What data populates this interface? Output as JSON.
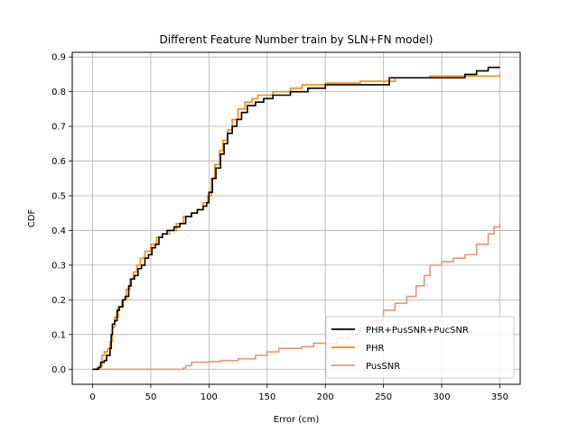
{
  "chart_data": {
    "type": "line",
    "title": "Different Feature Number train by SLN+FN model)",
    "xlabel": "Error (cm)",
    "ylabel": "CDF",
    "xlim": [
      -17.5,
      367.5
    ],
    "ylim": [
      -0.0435,
      0.9135
    ],
    "xticks": [
      0,
      50,
      100,
      150,
      200,
      250,
      300,
      350
    ],
    "yticks": [
      0.0,
      0.1,
      0.2,
      0.3,
      0.4,
      0.5,
      0.6,
      0.7,
      0.8,
      0.9
    ],
    "grid": true,
    "legend_position": "lower-right",
    "series": [
      {
        "name": "PHR+PusSNR+PucSNR",
        "color": "#000000",
        "points": [
          [
            0,
            0
          ],
          [
            3,
            0
          ],
          [
            5,
            0.005
          ],
          [
            7,
            0.02
          ],
          [
            10,
            0.025
          ],
          [
            12,
            0.04
          ],
          [
            15,
            0.06
          ],
          [
            16,
            0.1
          ],
          [
            17,
            0.13
          ],
          [
            19,
            0.14
          ],
          [
            21,
            0.17
          ],
          [
            23,
            0.18
          ],
          [
            26,
            0.2
          ],
          [
            28,
            0.21
          ],
          [
            31,
            0.24
          ],
          [
            33,
            0.26
          ],
          [
            36,
            0.27
          ],
          [
            39,
            0.29
          ],
          [
            42,
            0.3
          ],
          [
            45,
            0.32
          ],
          [
            48,
            0.33
          ],
          [
            51,
            0.35
          ],
          [
            54,
            0.36
          ],
          [
            57,
            0.38
          ],
          [
            60,
            0.39
          ],
          [
            64,
            0.4
          ],
          [
            70,
            0.41
          ],
          [
            75,
            0.42
          ],
          [
            80,
            0.44
          ],
          [
            85,
            0.45
          ],
          [
            90,
            0.46
          ],
          [
            95,
            0.47
          ],
          [
            98,
            0.48
          ],
          [
            100,
            0.51
          ],
          [
            103,
            0.55
          ],
          [
            106,
            0.58
          ],
          [
            110,
            0.62
          ],
          [
            113,
            0.65
          ],
          [
            116,
            0.68
          ],
          [
            120,
            0.7
          ],
          [
            124,
            0.72
          ],
          [
            128,
            0.74
          ],
          [
            133,
            0.76
          ],
          [
            140,
            0.77
          ],
          [
            147,
            0.78
          ],
          [
            155,
            0.79
          ],
          [
            170,
            0.8
          ],
          [
            185,
            0.81
          ],
          [
            200,
            0.82
          ],
          [
            255,
            0.84
          ],
          [
            290,
            0.84
          ],
          [
            320,
            0.85
          ],
          [
            330,
            0.86
          ],
          [
            340,
            0.87
          ],
          [
            350,
            0.87
          ]
        ]
      },
      {
        "name": "PHR",
        "color": "#ff8c00",
        "points": [
          [
            0,
            0
          ],
          [
            4,
            0.005
          ],
          [
            6,
            0.01
          ],
          [
            8,
            0.04
          ],
          [
            10,
            0.05
          ],
          [
            13,
            0.06
          ],
          [
            15,
            0.08
          ],
          [
            17,
            0.12
          ],
          [
            19,
            0.15
          ],
          [
            22,
            0.18
          ],
          [
            25,
            0.2
          ],
          [
            29,
            0.23
          ],
          [
            32,
            0.26
          ],
          [
            35,
            0.28
          ],
          [
            38,
            0.3
          ],
          [
            41,
            0.32
          ],
          [
            45,
            0.34
          ],
          [
            50,
            0.36
          ],
          [
            55,
            0.38
          ],
          [
            60,
            0.39
          ],
          [
            66,
            0.4
          ],
          [
            72,
            0.42
          ],
          [
            78,
            0.44
          ],
          [
            85,
            0.45
          ],
          [
            90,
            0.46
          ],
          [
            95,
            0.48
          ],
          [
            99,
            0.5
          ],
          [
            102,
            0.55
          ],
          [
            105,
            0.59
          ],
          [
            109,
            0.63
          ],
          [
            112,
            0.66
          ],
          [
            116,
            0.69
          ],
          [
            120,
            0.72
          ],
          [
            125,
            0.75
          ],
          [
            131,
            0.77
          ],
          [
            137,
            0.78
          ],
          [
            142,
            0.79
          ],
          [
            155,
            0.8
          ],
          [
            170,
            0.81
          ],
          [
            180,
            0.82
          ],
          [
            200,
            0.825
          ],
          [
            230,
            0.83
          ],
          [
            260,
            0.84
          ],
          [
            290,
            0.845
          ],
          [
            350,
            0.85
          ]
        ]
      },
      {
        "name": "PusSNR",
        "color": "#e9967a",
        "points": [
          [
            0,
            0
          ],
          [
            55,
            0
          ],
          [
            78,
            0.003
          ],
          [
            80,
            0.01
          ],
          [
            85,
            0.02
          ],
          [
            100,
            0.022
          ],
          [
            110,
            0.025
          ],
          [
            125,
            0.03
          ],
          [
            140,
            0.04
          ],
          [
            150,
            0.05
          ],
          [
            160,
            0.06
          ],
          [
            180,
            0.065
          ],
          [
            190,
            0.075
          ],
          [
            210,
            0.09
          ],
          [
            220,
            0.1
          ],
          [
            230,
            0.12
          ],
          [
            240,
            0.14
          ],
          [
            250,
            0.17
          ],
          [
            260,
            0.19
          ],
          [
            270,
            0.21
          ],
          [
            278,
            0.24
          ],
          [
            285,
            0.27
          ],
          [
            290,
            0.3
          ],
          [
            300,
            0.31
          ],
          [
            310,
            0.32
          ],
          [
            320,
            0.33
          ],
          [
            330,
            0.36
          ],
          [
            340,
            0.39
          ],
          [
            345,
            0.41
          ],
          [
            350,
            0.42
          ]
        ]
      }
    ]
  }
}
